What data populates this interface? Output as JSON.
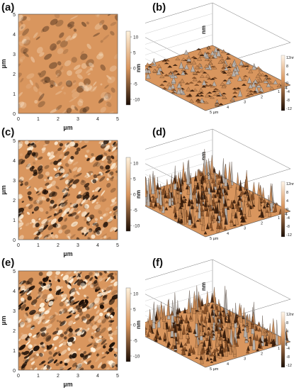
{
  "figure": {
    "panels": [
      {
        "id": "a",
        "label": "(a)",
        "type": "afm-2d",
        "x_axis_label": "µm",
        "y_axis_label": "µm",
        "x_ticks": [
          "0",
          "1",
          "2",
          "3",
          "4",
          "5"
        ],
        "y_ticks": [
          "0",
          "1",
          "2",
          "3",
          "4",
          "5"
        ],
        "colorbar_ticks": [
          "10",
          "5",
          "0",
          "-5",
          "-10"
        ],
        "colorbar_unit": "nm",
        "roughness": "low"
      },
      {
        "id": "b",
        "label": "(b)",
        "type": "afm-3d",
        "z_top_label": "12nm",
        "colorbar_ticks": [
          "12nm",
          "8",
          "4",
          "0",
          "-4",
          "-8",
          "-12"
        ],
        "front_ticks": [
          "0",
          "1",
          "2",
          "3",
          "4"
        ],
        "side_ticks": [
          "0",
          "1",
          "2",
          "3",
          "4",
          "5 µm"
        ],
        "z_axis_label": "nm",
        "roughness": "low"
      },
      {
        "id": "c",
        "label": "(c)",
        "type": "afm-2d",
        "x_axis_label": "µm",
        "y_axis_label": "µm",
        "x_ticks": [
          "0",
          "1",
          "2",
          "3",
          "4",
          "5"
        ],
        "y_ticks": [
          "0",
          "1",
          "2",
          "3",
          "4",
          "5"
        ],
        "colorbar_ticks": [
          "10",
          "5",
          "0",
          "-5",
          "-10"
        ],
        "colorbar_unit": "nm",
        "roughness": "medium"
      },
      {
        "id": "d",
        "label": "(d)",
        "type": "afm-3d",
        "z_top_label": "12nm",
        "colorbar_ticks": [
          "12nm",
          "8",
          "4",
          "0",
          "-4",
          "-8",
          "-12"
        ],
        "front_ticks": [
          "0",
          "1",
          "2",
          "3",
          "4"
        ],
        "side_ticks": [
          "0",
          "1",
          "2",
          "3",
          "4",
          "5 µm"
        ],
        "z_axis_label": "nm",
        "roughness": "high"
      },
      {
        "id": "e",
        "label": "(e)",
        "type": "afm-2d",
        "x_axis_label": "µm",
        "y_axis_label": "µm",
        "x_ticks": [
          "0",
          "1",
          "2",
          "3",
          "4",
          "5"
        ],
        "y_ticks": [
          "0",
          "1",
          "2",
          "3",
          "4",
          "5"
        ],
        "colorbar_ticks": [
          "10",
          "5",
          "0",
          "-5",
          "-10"
        ],
        "colorbar_unit": "nm",
        "roughness": "high"
      },
      {
        "id": "f",
        "label": "(f)",
        "type": "afm-3d",
        "z_top_label": "12nm",
        "colorbar_ticks": [
          "12nm",
          "8",
          "4",
          "0",
          "-4",
          "-8",
          "-12"
        ],
        "front_ticks": [
          "0",
          "1",
          "2",
          "3",
          "4"
        ],
        "side_ticks": [
          "0",
          "1",
          "2",
          "3",
          "4",
          "5 µm"
        ],
        "z_axis_label": "nm",
        "roughness": "high"
      }
    ],
    "colors": {
      "dark": "#1a0d05",
      "mid": "#d9965e",
      "light": "#fff2dc",
      "gray_peak": "#b8b4b0"
    }
  }
}
